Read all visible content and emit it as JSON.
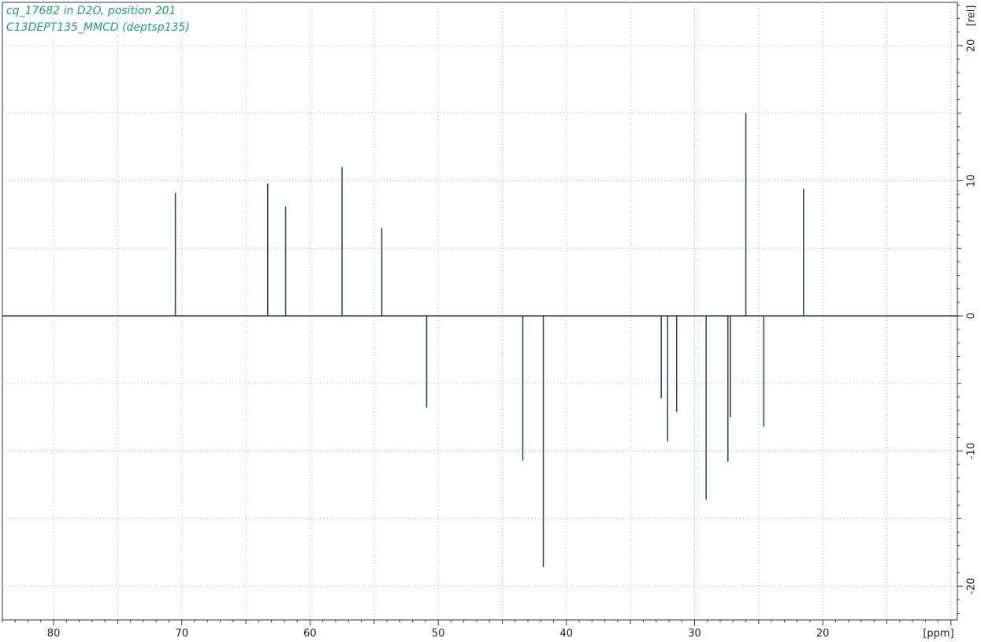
{
  "chart_data": {
    "type": "line",
    "title_lines": [
      "cq_17682 in D2O, position 201",
      "C13DEPT135_MMCD (deptsp135)"
    ],
    "xlabel": "[ppm]",
    "ylabel": "[rel]",
    "xlim": [
      84,
      9.5
    ],
    "ylim": [
      -22.5,
      23.2
    ],
    "x_ticks": [
      80,
      70,
      60,
      50,
      40,
      30,
      20
    ],
    "y_ticks": [
      20,
      10,
      0,
      -10,
      -20
    ],
    "grid": true,
    "baseline": 0,
    "peaks": [
      {
        "x": 70.5,
        "y": 9.1
      },
      {
        "x": 63.3,
        "y": 9.8
      },
      {
        "x": 61.9,
        "y": 8.1
      },
      {
        "x": 57.5,
        "y": 11.0
      },
      {
        "x": 54.4,
        "y": 6.5
      },
      {
        "x": 50.9,
        "y": -6.8
      },
      {
        "x": 43.4,
        "y": -10.7
      },
      {
        "x": 41.8,
        "y": -18.6
      },
      {
        "x": 32.6,
        "y": -6.1
      },
      {
        "x": 32.1,
        "y": -9.3
      },
      {
        "x": 31.4,
        "y": -7.1
      },
      {
        "x": 29.1,
        "y": -13.6
      },
      {
        "x": 27.4,
        "y": -10.8
      },
      {
        "x": 27.2,
        "y": -7.5
      },
      {
        "x": 26.0,
        "y": 15.0
      },
      {
        "x": 24.6,
        "y": -8.2
      },
      {
        "x": 21.5,
        "y": 9.4
      }
    ]
  },
  "colors": {
    "spectrum": "#1f4c4a",
    "grid": "#b0b0b0",
    "axis": "#333333",
    "title": "#16a085",
    "label": "#222222"
  }
}
